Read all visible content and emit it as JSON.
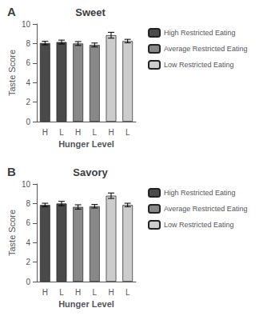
{
  "chart_data": [
    {
      "type": "bar",
      "title": "Sweet",
      "annotations": [
        "A"
      ],
      "xlabel": "Hunger Level",
      "ylabel": "Taste Score",
      "categories": [
        "H",
        "L",
        "H",
        "L",
        "H",
        "L"
      ],
      "series": [
        {
          "name": "High Restricted Eating",
          "color": "#4a4a4a",
          "values": [
            8.05,
            8.15,
            null,
            null,
            null,
            null
          ],
          "errors": [
            0.18,
            0.2,
            null,
            null,
            null,
            null
          ]
        },
        {
          "name": "Average Restricted Eating",
          "color": "#888888",
          "values": [
            null,
            null,
            8.0,
            7.85,
            null,
            null
          ],
          "errors": [
            null,
            null,
            0.2,
            0.2,
            null,
            null
          ]
        },
        {
          "name": "Low Restricted Eating",
          "color": "#cccccc",
          "values": [
            null,
            null,
            null,
            null,
            8.85,
            8.25
          ],
          "errors": [
            null,
            null,
            null,
            null,
            0.3,
            0.18
          ]
        }
      ],
      "ylim": [
        0,
        10
      ],
      "yticks": [
        0,
        2,
        4,
        6,
        8,
        10
      ],
      "grid": false,
      "legend": "right"
    },
    {
      "type": "bar",
      "title": "Savory",
      "annotations": [
        "B"
      ],
      "xlabel": "Hunger Level",
      "ylabel": "Taste Score",
      "categories": [
        "H",
        "L",
        "H",
        "L",
        "H",
        "L"
      ],
      "series": [
        {
          "name": "High Restricted Eating",
          "color": "#4a4a4a",
          "values": [
            7.85,
            8.0,
            null,
            null,
            null,
            null
          ],
          "errors": [
            0.18,
            0.22,
            null,
            null,
            null,
            null
          ]
        },
        {
          "name": "Average Restricted Eating",
          "color": "#888888",
          "values": [
            null,
            null,
            7.65,
            7.72,
            null,
            null
          ],
          "errors": [
            null,
            null,
            0.22,
            0.18,
            null,
            null
          ]
        },
        {
          "name": "Low Restricted Eating",
          "color": "#cccccc",
          "values": [
            null,
            null,
            null,
            null,
            8.8,
            7.85
          ],
          "errors": [
            null,
            null,
            null,
            null,
            0.28,
            0.18
          ]
        }
      ],
      "ylim": [
        0,
        10
      ],
      "yticks": [
        0,
        2,
        4,
        6,
        8,
        10
      ],
      "grid": false,
      "legend": "right"
    }
  ]
}
